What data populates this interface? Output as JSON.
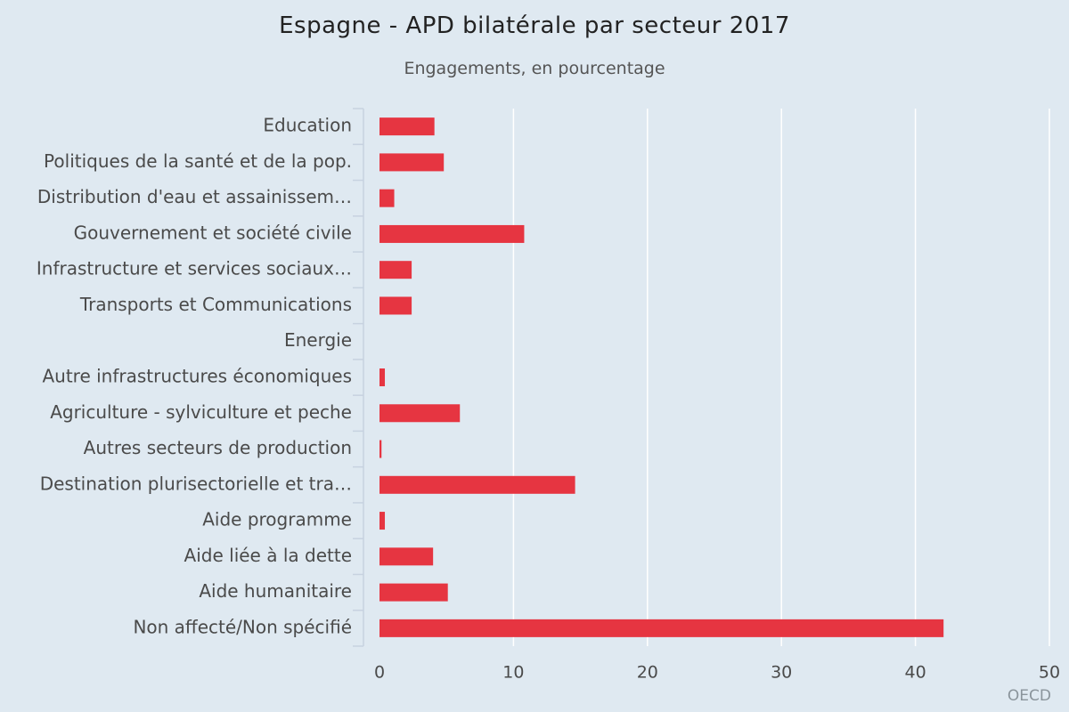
{
  "title": "Espagne - APD bilatérale par secteur 2017",
  "subtitle": "Engagements, en pourcentage",
  "source": "OECD",
  "colors": {
    "bar": "#e63541",
    "background": "#dfe9f1",
    "gridline": "#ffffff",
    "axis": "#c7d2e0"
  },
  "chart_data": {
    "type": "bar",
    "orientation": "horizontal",
    "title": "Espagne - APD bilatérale par secteur 2017",
    "subtitle": "Engagements, en pourcentage",
    "categories": [
      "Education",
      "Politiques de la santé et de la pop.",
      "Distribution d'eau et assainissem…",
      "Gouvernement et société civile",
      "Infrastructure et services sociaux…",
      "Transports et Communications",
      "Energie",
      "Autre infrastructures économiques",
      "Agriculture - sylviculture et peche",
      "Autres secteurs de production",
      "Destination plurisectorielle et tra…",
      "Aide programme",
      "Aide liée à la dette",
      "Aide humanitaire",
      "Non affecté/Non spécifié"
    ],
    "values": [
      4.1,
      4.8,
      1.1,
      10.8,
      2.4,
      2.4,
      0.0,
      0.4,
      6.0,
      0.15,
      14.6,
      0.4,
      4.0,
      5.1,
      42.1
    ],
    "xlim": [
      0,
      50
    ],
    "xticks": [
      "0",
      "10",
      "20",
      "30",
      "40",
      "50"
    ],
    "grid": true,
    "legend": "none"
  }
}
